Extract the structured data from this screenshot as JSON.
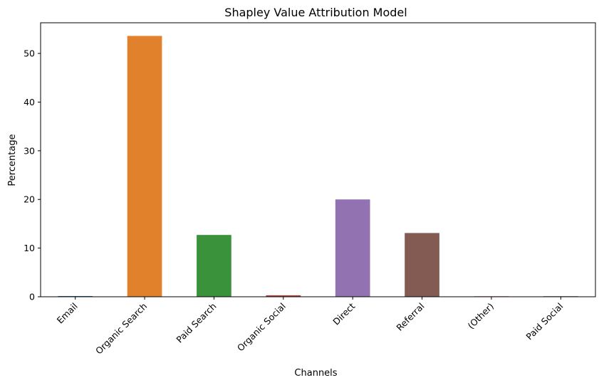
{
  "chart_data": {
    "type": "bar",
    "title": "Shapley Value Attribution Model",
    "xlabel": "Channels",
    "ylabel": "Percentage",
    "categories": [
      "Email",
      "Organic Search",
      "Paid Search",
      "Organic Social",
      "Direct",
      "Referral",
      "(Other)",
      "Paid Social"
    ],
    "values": [
      0.15,
      53.6,
      12.7,
      0.3,
      20.0,
      13.1,
      0.1,
      0.1
    ],
    "colors": [
      "#3274a1",
      "#e1812c",
      "#3a923a",
      "#c03d3e",
      "#9372b2",
      "#845b53",
      "#d684bd",
      "#7f7f7f"
    ],
    "ylim": [
      0,
      56.3
    ],
    "yticks": [
      0,
      10,
      20,
      30,
      40,
      50
    ],
    "grid": false,
    "x_tick_rotation": 45
  }
}
